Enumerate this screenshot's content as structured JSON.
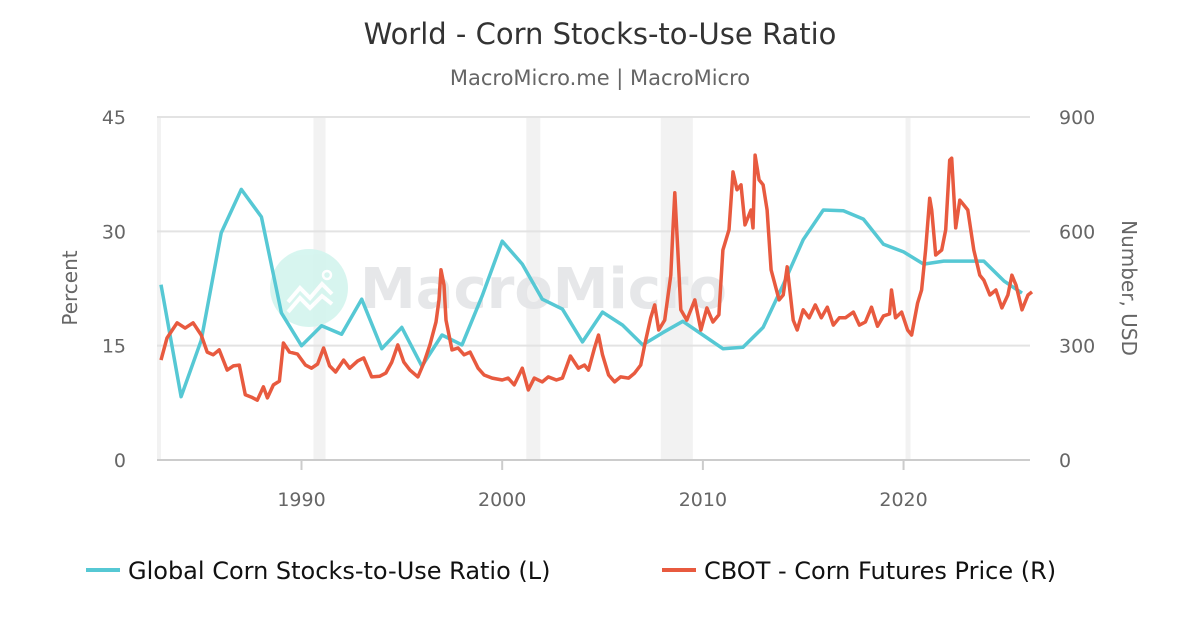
{
  "chart_data": {
    "type": "line",
    "title": "World - Corn Stocks-to-Use Ratio",
    "subtitle": "MacroMicro.me | MacroMicro",
    "watermark": "MacroMicro",
    "left_axis": {
      "label": "Percent",
      "range": [
        0,
        45
      ],
      "ticks": [
        "0",
        "15",
        "30",
        "45"
      ]
    },
    "right_axis": {
      "label": "Number, USD",
      "range": [
        0,
        900
      ],
      "ticks": [
        "0",
        "300",
        "600",
        "900"
      ]
    },
    "x_axis": {
      "range": [
        1982.8,
        2026.3
      ],
      "ticks": [
        "1990",
        "2000",
        "2010",
        "2020"
      ]
    },
    "grid": true,
    "legend_position": "bottom",
    "shaded_periods": [
      [
        1982.8,
        1982.95
      ],
      [
        1990.6,
        1991.2
      ],
      [
        2001.2,
        2001.9
      ],
      [
        2007.9,
        2009.5
      ],
      [
        2020.1,
        2020.35
      ]
    ],
    "series": [
      {
        "name": "Global Corn Stocks-to-Use Ratio (L)",
        "axis": "left",
        "color": "#56c8d4",
        "points": [
          [
            1983,
            23
          ],
          [
            1984,
            8.3
          ],
          [
            1985,
            15.7
          ],
          [
            1986,
            29.8
          ],
          [
            1987,
            35.5
          ],
          [
            1988,
            31.9
          ],
          [
            1989,
            19.3
          ],
          [
            1990,
            15
          ],
          [
            1991,
            17.6
          ],
          [
            1992,
            16.5
          ],
          [
            1993,
            21.1
          ],
          [
            1994,
            14.6
          ],
          [
            1995,
            17.4
          ],
          [
            1996,
            12.3
          ],
          [
            1997,
            16.4
          ],
          [
            1998,
            15.1
          ],
          [
            1999,
            21.5
          ],
          [
            2000,
            28.7
          ],
          [
            2001,
            25.7
          ],
          [
            2002,
            21.1
          ],
          [
            2003,
            19.8
          ],
          [
            2004,
            15.5
          ],
          [
            2005,
            19.4
          ],
          [
            2006,
            17.7
          ],
          [
            2007,
            15.1
          ],
          [
            2008,
            16.7
          ],
          [
            2009,
            18.2
          ],
          [
            2010,
            16.4
          ],
          [
            2011,
            14.6
          ],
          [
            2012,
            14.8
          ],
          [
            2013,
            17.4
          ],
          [
            2014,
            23
          ],
          [
            2015,
            28.9
          ],
          [
            2016,
            32.8
          ],
          [
            2017,
            32.7
          ],
          [
            2018,
            31.6
          ],
          [
            2019,
            28.3
          ],
          [
            2020,
            27.3
          ],
          [
            2021,
            25.7
          ],
          [
            2022,
            26.1
          ],
          [
            2023,
            26.1
          ],
          [
            2024,
            26.1
          ],
          [
            2025,
            23.5
          ],
          [
            2025.9,
            21.9
          ]
        ]
      },
      {
        "name": "CBOT - Corn Futures Price (R)",
        "axis": "right",
        "color": "#e85a3f",
        "points": [
          [
            1983.0,
            262
          ],
          [
            1983.3,
            320
          ],
          [
            1983.8,
            360
          ],
          [
            1984.2,
            346
          ],
          [
            1984.6,
            360
          ],
          [
            1985.0,
            328
          ],
          [
            1985.3,
            283
          ],
          [
            1985.6,
            276
          ],
          [
            1985.9,
            289
          ],
          [
            1986.3,
            236
          ],
          [
            1986.6,
            247
          ],
          [
            1986.9,
            249
          ],
          [
            1987.2,
            171
          ],
          [
            1987.5,
            165
          ],
          [
            1987.8,
            157
          ],
          [
            1988.1,
            192
          ],
          [
            1988.3,
            163
          ],
          [
            1988.6,
            197
          ],
          [
            1988.9,
            207
          ],
          [
            1989.1,
            307
          ],
          [
            1989.4,
            283
          ],
          [
            1989.8,
            278
          ],
          [
            1990.2,
            249
          ],
          [
            1990.5,
            241
          ],
          [
            1990.8,
            252
          ],
          [
            1991.1,
            294
          ],
          [
            1991.4,
            247
          ],
          [
            1991.7,
            231
          ],
          [
            1992.1,
            262
          ],
          [
            1992.4,
            241
          ],
          [
            1992.8,
            260
          ],
          [
            1993.1,
            268
          ],
          [
            1993.5,
            218
          ],
          [
            1993.9,
            220
          ],
          [
            1994.2,
            228
          ],
          [
            1994.5,
            257
          ],
          [
            1994.8,
            302
          ],
          [
            1995.1,
            257
          ],
          [
            1995.4,
            236
          ],
          [
            1995.8,
            218
          ],
          [
            1996.1,
            255
          ],
          [
            1996.4,
            302
          ],
          [
            1996.7,
            362
          ],
          [
            1996.85,
            420
          ],
          [
            1996.95,
            499
          ],
          [
            1997.1,
            459
          ],
          [
            1997.2,
            367
          ],
          [
            1997.5,
            289
          ],
          [
            1997.8,
            294
          ],
          [
            1998.1,
            276
          ],
          [
            1998.4,
            283
          ],
          [
            1998.8,
            241
          ],
          [
            1999.1,
            223
          ],
          [
            1999.5,
            215
          ],
          [
            2000.0,
            210
          ],
          [
            2000.3,
            215
          ],
          [
            2000.6,
            197
          ],
          [
            2001.0,
            241
          ],
          [
            2001.3,
            184
          ],
          [
            2001.6,
            215
          ],
          [
            2002.0,
            205
          ],
          [
            2002.3,
            218
          ],
          [
            2002.7,
            210
          ],
          [
            2003.0,
            215
          ],
          [
            2003.4,
            273
          ],
          [
            2003.8,
            241
          ],
          [
            2004.1,
            249
          ],
          [
            2004.3,
            236
          ],
          [
            2004.6,
            294
          ],
          [
            2004.8,
            328
          ],
          [
            2005.0,
            276
          ],
          [
            2005.3,
            223
          ],
          [
            2005.6,
            205
          ],
          [
            2005.9,
            218
          ],
          [
            2006.3,
            215
          ],
          [
            2006.6,
            228
          ],
          [
            2006.9,
            249
          ],
          [
            2007.1,
            302
          ],
          [
            2007.4,
            373
          ],
          [
            2007.6,
            407
          ],
          [
            2007.8,
            341
          ],
          [
            2008.1,
            367
          ],
          [
            2008.4,
            485
          ],
          [
            2008.5,
            598
          ],
          [
            2008.6,
            701
          ],
          [
            2008.75,
            551
          ],
          [
            2008.9,
            394
          ],
          [
            2009.2,
            367
          ],
          [
            2009.6,
            420
          ],
          [
            2009.9,
            341
          ],
          [
            2010.2,
            399
          ],
          [
            2010.5,
            362
          ],
          [
            2010.8,
            381
          ],
          [
            2011.0,
            551
          ],
          [
            2011.3,
            604
          ],
          [
            2011.5,
            756
          ],
          [
            2011.7,
            709
          ],
          [
            2011.9,
            722
          ],
          [
            2012.1,
            617
          ],
          [
            2012.4,
            656
          ],
          [
            2012.5,
            609
          ],
          [
            2012.6,
            800
          ],
          [
            2012.8,
            735
          ],
          [
            2013.0,
            722
          ],
          [
            2013.2,
            656
          ],
          [
            2013.4,
            499
          ],
          [
            2013.8,
            420
          ],
          [
            2014.0,
            433
          ],
          [
            2014.2,
            507
          ],
          [
            2014.5,
            367
          ],
          [
            2014.7,
            341
          ],
          [
            2015.0,
            394
          ],
          [
            2015.3,
            373
          ],
          [
            2015.6,
            407
          ],
          [
            2015.9,
            373
          ],
          [
            2016.2,
            401
          ],
          [
            2016.5,
            354
          ],
          [
            2016.8,
            373
          ],
          [
            2017.1,
            373
          ],
          [
            2017.5,
            388
          ],
          [
            2017.8,
            354
          ],
          [
            2018.1,
            362
          ],
          [
            2018.4,
            401
          ],
          [
            2018.7,
            351
          ],
          [
            2019.0,
            378
          ],
          [
            2019.3,
            383
          ],
          [
            2019.4,
            446
          ],
          [
            2019.6,
            373
          ],
          [
            2019.9,
            388
          ],
          [
            2020.2,
            341
          ],
          [
            2020.4,
            328
          ],
          [
            2020.7,
            412
          ],
          [
            2020.9,
            446
          ],
          [
            2021.1,
            551
          ],
          [
            2021.3,
            687
          ],
          [
            2021.4,
            656
          ],
          [
            2021.6,
            538
          ],
          [
            2021.9,
            551
          ],
          [
            2022.1,
            604
          ],
          [
            2022.3,
            787
          ],
          [
            2022.4,
            792
          ],
          [
            2022.6,
            609
          ],
          [
            2022.8,
            682
          ],
          [
            2023.0,
            669
          ],
          [
            2023.2,
            656
          ],
          [
            2023.5,
            551
          ],
          [
            2023.8,
            485
          ],
          [
            2024.0,
            472
          ],
          [
            2024.3,
            433
          ],
          [
            2024.6,
            446
          ],
          [
            2024.9,
            399
          ],
          [
            2025.2,
            433
          ],
          [
            2025.4,
            485
          ],
          [
            2025.6,
            459
          ],
          [
            2025.9,
            394
          ],
          [
            2026.2,
            433
          ],
          [
            2026.4,
            441
          ]
        ]
      }
    ]
  }
}
